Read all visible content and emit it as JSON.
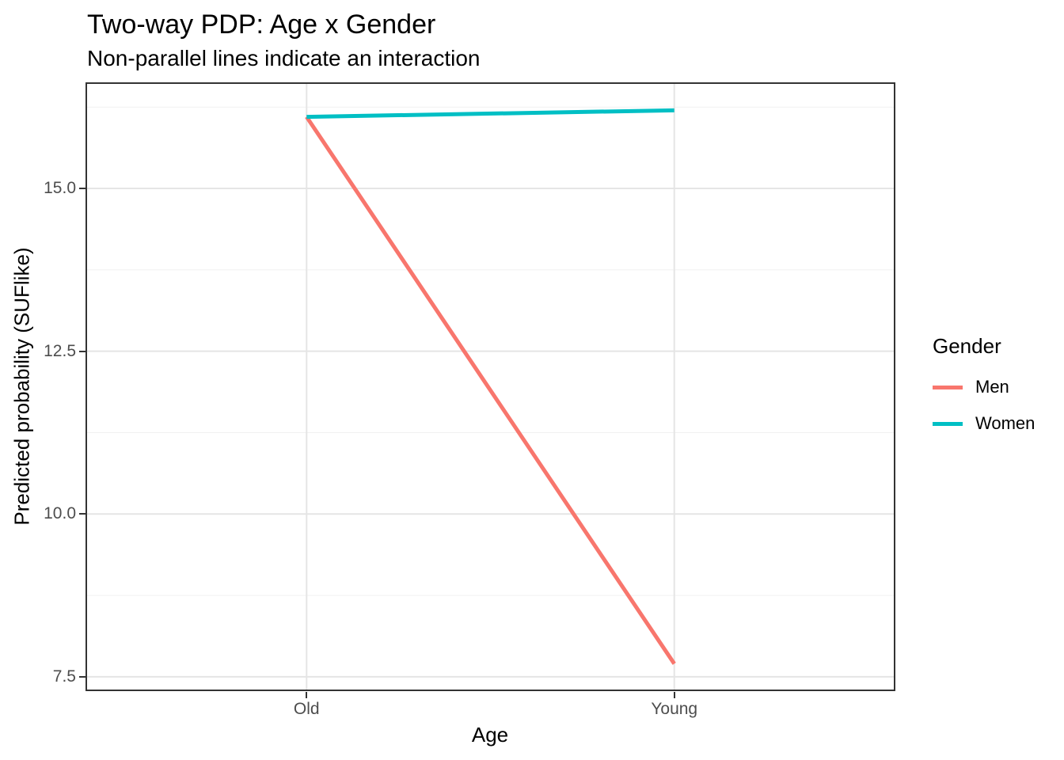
{
  "chart_data": {
    "type": "line",
    "title": "Two-way PDP: Age x Gender",
    "subtitle": "Non-parallel lines indicate an interaction",
    "xlabel": "Age",
    "ylabel": "Predicted probability (SUFlike)",
    "categories": [
      "Old",
      "Young"
    ],
    "x_positions": [
      0.273,
      0.727
    ],
    "series": [
      {
        "name": "Men",
        "color": "#F8766D",
        "values": [
          16.1,
          7.7
        ]
      },
      {
        "name": "Women",
        "color": "#00BFC4",
        "values": [
          16.1,
          16.2
        ]
      }
    ],
    "ylim": [
      7.28,
      16.63
    ],
    "y_ticks": [
      7.5,
      10.0,
      12.5,
      15.0
    ],
    "y_tick_labels": [
      "7.5",
      "10.0",
      "12.5",
      "15.0"
    ],
    "y_minor_ticks": [
      8.75,
      11.25,
      13.75,
      16.25
    ],
    "grid": true,
    "legend": {
      "title": "Gender",
      "position": "right",
      "items": [
        {
          "label": "Men",
          "color": "#F8766D"
        },
        {
          "label": "Women",
          "color": "#00BFC4"
        }
      ]
    },
    "colors": {
      "grid_major": "#E5E5E5",
      "grid_minor": "#F1F1F1",
      "panel_border": "#333333",
      "tick": "#333333",
      "tick_label": "#4D4D4D",
      "text": "#000000",
      "background": "#FFFFFF"
    }
  }
}
